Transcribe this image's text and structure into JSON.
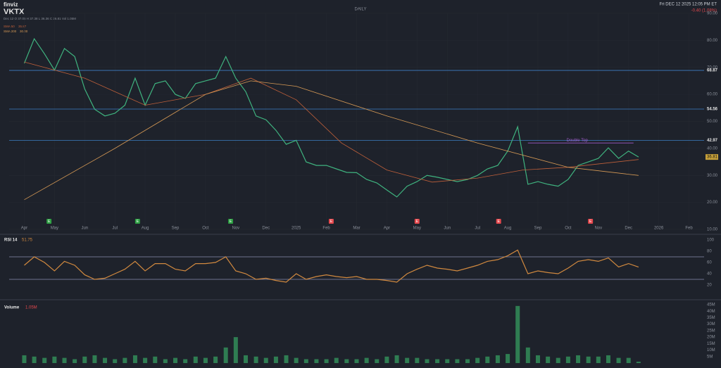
{
  "header": {
    "logo": "finviz",
    "ticker": "VKTX",
    "interval": "DAILY",
    "datetime": "Fri DEC 12 2025 12:05 PM ET",
    "change": "-0.40 (1.08%)",
    "ohlc": "Dec 12  O 37.05  H 37.38  L 36.36  C 36.81  Vol 1.05M",
    "sma50_value": "35.87",
    "sma200_value": "30.00",
    "volume_current": "1.05M"
  },
  "chart_data": [
    {
      "type": "line",
      "grid": true,
      "x": [
        0,
        0.33,
        0.67,
        1,
        1.33,
        1.67,
        2,
        2.33,
        2.67,
        3,
        3.33,
        3.67,
        4,
        4.33,
        4.67,
        5,
        5.33,
        5.67,
        6,
        6.33,
        6.67,
        7,
        7.33,
        7.67,
        8,
        8.33,
        8.67,
        9,
        9.33,
        9.67,
        10,
        10.33,
        10.67,
        11,
        11.33,
        11.67,
        12,
        12.33,
        12.67,
        13,
        13.33,
        13.67,
        14,
        14.33,
        14.67,
        15,
        15.33,
        15.67,
        16,
        16.33,
        16.67,
        17,
        17.33,
        17.67,
        18,
        18.33,
        18.67,
        19,
        19.33,
        19.67,
        20,
        20.33
      ],
      "series": [
        {
          "name": "VKTX",
          "color": "#3fb37f",
          "values": [
            71.5,
            80.6,
            75,
            69,
            77,
            74,
            62,
            54.5,
            52,
            53,
            56,
            66,
            56,
            64,
            65,
            60,
            58.5,
            64,
            65,
            66,
            74,
            66,
            61,
            52,
            50.6,
            46.7,
            41.5,
            43,
            35,
            33.7,
            33.7,
            32.4,
            31.1,
            31,
            28.5,
            27.2,
            24.6,
            22,
            26,
            27.7,
            30,
            29.3,
            28.5,
            27.7,
            28.5,
            30,
            32.4,
            33.7,
            39,
            48,
            26.7,
            27.7,
            26.7,
            26,
            28.5,
            33.7,
            35,
            36.3,
            40.2,
            36.3,
            39,
            36.81
          ]
        },
        {
          "name": "SMA 50",
          "color": "#c0603a",
          "x": [
            0,
            2,
            4,
            6,
            7.5,
            9,
            10.5,
            12,
            13.5,
            15,
            16.5,
            18,
            20.33
          ],
          "values": [
            72,
            66,
            56,
            60,
            66,
            58,
            42,
            32,
            27.5,
            29,
            32,
            33,
            35.87
          ]
        },
        {
          "name": "SMA 200",
          "color": "#d79a55",
          "x": [
            0,
            3,
            6,
            7.5,
            9,
            12,
            15,
            18,
            20.33
          ],
          "values": [
            21,
            40,
            60,
            65,
            63,
            52,
            42,
            33,
            30
          ]
        }
      ],
      "xlim": [
        -0.5,
        22.5
      ],
      "xticks": [
        {
          "value": 0,
          "label": "Apr"
        },
        {
          "value": 1,
          "label": "May"
        },
        {
          "value": 2,
          "label": "Jun"
        },
        {
          "value": 3,
          "label": "Jul"
        },
        {
          "value": 4,
          "label": "Aug"
        },
        {
          "value": 5,
          "label": "Sep"
        },
        {
          "value": 6,
          "label": "Oct"
        },
        {
          "value": 7,
          "label": "Nov"
        },
        {
          "value": 8,
          "label": "Dec"
        },
        {
          "value": 9,
          "label": "2025"
        },
        {
          "value": 10,
          "label": "Feb"
        },
        {
          "value": 11,
          "label": "Mar"
        },
        {
          "value": 12,
          "label": "Apr"
        },
        {
          "value": 13,
          "label": "May"
        },
        {
          "value": 14,
          "label": "Jun"
        },
        {
          "value": 15,
          "label": "Jul"
        },
        {
          "value": 16,
          "label": "Aug"
        },
        {
          "value": 17,
          "label": "Sep"
        },
        {
          "value": 18,
          "label": "Oct"
        },
        {
          "value": 19,
          "label": "Nov"
        },
        {
          "value": 20,
          "label": "Dec"
        },
        {
          "value": 21,
          "label": "2026"
        },
        {
          "value": 22,
          "label": "Feb"
        }
      ],
      "ylim": [
        10,
        90
      ],
      "yticks": [
        {
          "value": 10,
          "label": "10.00"
        },
        {
          "value": 20,
          "label": "20.00"
        },
        {
          "value": 30,
          "label": "30.00"
        },
        {
          "value": 40,
          "label": "40.00"
        },
        {
          "value": 50,
          "label": "50.00"
        },
        {
          "value": 60,
          "label": "60.00"
        },
        {
          "value": 70,
          "label": "70.00"
        },
        {
          "value": 80,
          "label": "80.00"
        },
        {
          "value": 90,
          "label": "90.00"
        }
      ],
      "levels": [
        68.87,
        54.56,
        42.97
      ],
      "annotation": {
        "text": "Double Top",
        "x": 18.3,
        "y": 42
      },
      "earnings": {
        "label": "E",
        "x": [
          0.82,
          3.75,
          6.83,
          10.16,
          13.0,
          15.7,
          18.74
        ],
        "colors": [
          "#2ea043",
          "#2ea043",
          "#2ea043",
          "#e5484d",
          "#e5484d",
          "#e5484d",
          "#e5484d"
        ]
      }
    },
    {
      "type": "line",
      "title": "RSI 14",
      "x": [
        0,
        0.33,
        0.67,
        1,
        1.33,
        1.67,
        2,
        2.33,
        2.67,
        3,
        3.33,
        3.67,
        4,
        4.33,
        4.67,
        5,
        5.33,
        5.67,
        6,
        6.33,
        6.67,
        7,
        7.33,
        7.67,
        8,
        8.33,
        8.67,
        9,
        9.33,
        9.67,
        10,
        10.33,
        10.67,
        11,
        11.33,
        11.67,
        12,
        12.33,
        12.67,
        13,
        13.33,
        13.67,
        14,
        14.33,
        14.67,
        15,
        15.33,
        15.67,
        16,
        16.33,
        16.67,
        17,
        17.33,
        17.67,
        18,
        18.33,
        18.67,
        19,
        19.33,
        19.67,
        20,
        20.33
      ],
      "series": [
        {
          "name": "RSI 14",
          "color": "#d1893f",
          "values": [
            55,
            70,
            60,
            45,
            62,
            55,
            38,
            30,
            32,
            40,
            48,
            62,
            45,
            58,
            58,
            48,
            45,
            58,
            58,
            60,
            70,
            45,
            40,
            30,
            32,
            28,
            25,
            40,
            30,
            35,
            38,
            35,
            33,
            35,
            30,
            30,
            28,
            25,
            40,
            48,
            55,
            50,
            48,
            45,
            50,
            55,
            62,
            65,
            72,
            82,
            40,
            45,
            42,
            40,
            50,
            62,
            65,
            62,
            68,
            52,
            58,
            51.75
          ]
        }
      ],
      "xlim": [
        -0.5,
        22.5
      ],
      "ylim": [
        0,
        100
      ],
      "yticks": [
        20,
        40,
        60,
        80,
        100
      ],
      "levels": [
        70,
        30
      ]
    },
    {
      "type": "bar",
      "title": "Volume",
      "x": [
        0,
        0.33,
        0.67,
        1,
        1.33,
        1.67,
        2,
        2.33,
        2.67,
        3,
        3.33,
        3.67,
        4,
        4.33,
        4.67,
        5,
        5.33,
        5.67,
        6,
        6.33,
        6.67,
        7,
        7.33,
        7.67,
        8,
        8.33,
        8.67,
        9,
        9.33,
        9.67,
        10,
        10.33,
        10.67,
        11,
        11.33,
        11.67,
        12,
        12.33,
        12.67,
        13,
        13.33,
        13.67,
        14,
        14.33,
        14.67,
        15,
        15.33,
        15.67,
        16,
        16.33,
        16.67,
        17,
        17.33,
        17.67,
        18,
        18.33,
        18.67,
        19,
        19.33,
        19.67,
        20,
        20.33
      ],
      "series": [
        {
          "name": "Volume",
          "color": "#2f7d52",
          "values": [
            6,
            5,
            4,
            5,
            4,
            3,
            5,
            6,
            4,
            3,
            4,
            6,
            4,
            5,
            3,
            4,
            3,
            5,
            4,
            5,
            12,
            20,
            6,
            5,
            4,
            5,
            6,
            4,
            3,
            3,
            3,
            4,
            3,
            3,
            4,
            3,
            5,
            6,
            4,
            4,
            3,
            3,
            3,
            3,
            3,
            4,
            5,
            6,
            7,
            44,
            12,
            6,
            5,
            4,
            5,
            6,
            5,
            5,
            6,
            4,
            4,
            1.05
          ]
        }
      ],
      "xlim": [
        -0.5,
        22.5
      ],
      "ylim": [
        0,
        45
      ],
      "yticks": [
        {
          "value": 5,
          "label": "5M"
        },
        {
          "value": 10,
          "label": "10M"
        },
        {
          "value": 15,
          "label": "15M"
        },
        {
          "value": 20,
          "label": "20M"
        },
        {
          "value": 25,
          "label": "25M"
        },
        {
          "value": 30,
          "label": "30M"
        },
        {
          "value": 35,
          "label": "35M"
        },
        {
          "value": 40,
          "label": "40M"
        },
        {
          "value": 45,
          "label": "45M"
        }
      ]
    }
  ]
}
